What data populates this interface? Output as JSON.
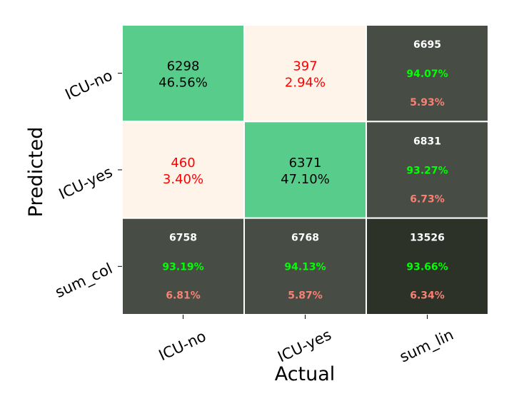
{
  "chart_data": {
    "type": "heatmap",
    "title": "",
    "xlabel": "Actual",
    "ylabel": "Predicted",
    "x_categories": [
      "ICU-no",
      "ICU-yes",
      "sum_lin"
    ],
    "y_categories": [
      "ICU-no",
      "ICU-yes",
      "sum_col"
    ],
    "cells": [
      [
        {
          "count": "6298",
          "pct": "46.56%",
          "kind": "correct"
        },
        {
          "count": "397",
          "pct": "2.94%",
          "kind": "error"
        },
        {
          "count": "6695",
          "acc": "94.07%",
          "err": "5.93%",
          "kind": "summary"
        }
      ],
      [
        {
          "count": "460",
          "pct": "3.40%",
          "kind": "error"
        },
        {
          "count": "6371",
          "pct": "47.10%",
          "kind": "correct"
        },
        {
          "count": "6831",
          "acc": "93.27%",
          "err": "6.73%",
          "kind": "summary"
        }
      ],
      [
        {
          "count": "6758",
          "acc": "93.19%",
          "err": "6.81%",
          "kind": "summary"
        },
        {
          "count": "6768",
          "acc": "94.13%",
          "err": "5.87%",
          "kind": "summary"
        },
        {
          "count": "13526",
          "acc": "93.66%",
          "err": "6.34%",
          "kind": "total"
        }
      ]
    ],
    "colors": {
      "correct": "#58cd8b",
      "error": "#fff4ea",
      "summary": "#474d45",
      "total": "#2d3229",
      "correct_text": "#000000",
      "error_text": "#ff0000",
      "summary_count": "#ffffff",
      "summary_acc": "#00ff00",
      "summary_err": "#fa8072"
    }
  }
}
